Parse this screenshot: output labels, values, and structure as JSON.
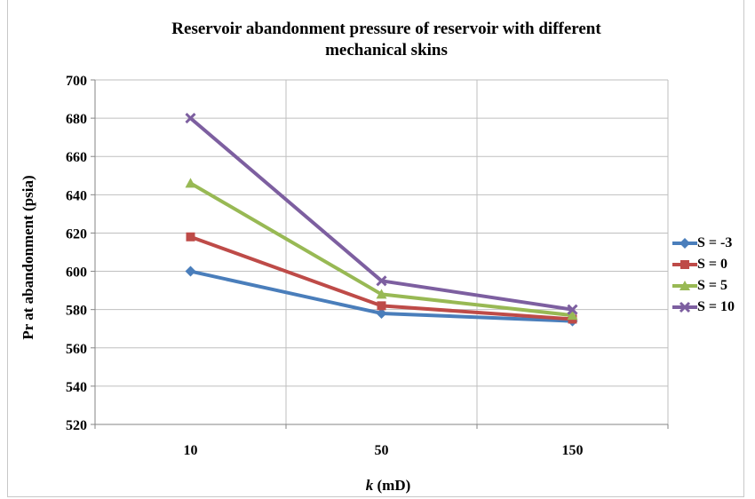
{
  "chart_data": {
    "type": "line",
    "title_line1": "Reservoir abandonment pressure of reservoir with different",
    "title_line2": "mechanical skins",
    "ylabel": "Pr at abandonment (psia)",
    "xlabel_italic": "k",
    "xlabel_rest": " (mD)",
    "categories": [
      "10",
      "50",
      "150"
    ],
    "ylim": [
      520,
      700
    ],
    "yticks": [
      520,
      540,
      560,
      580,
      600,
      620,
      640,
      660,
      680,
      700
    ],
    "grid": true,
    "legend_position": "right",
    "series": [
      {
        "name": "S = -3",
        "values": [
          600,
          578,
          574
        ],
        "color": "#4a7ebb",
        "marker": "diamond"
      },
      {
        "name": "S = 0",
        "values": [
          618,
          582,
          575
        ],
        "color": "#be4b48",
        "marker": "square"
      },
      {
        "name": "S = 5",
        "values": [
          646,
          588,
          577
        ],
        "color": "#98b954",
        "marker": "triangle"
      },
      {
        "name": "S = 10",
        "values": [
          680,
          595,
          580
        ],
        "color": "#7d5fa0",
        "marker": "x"
      }
    ]
  }
}
